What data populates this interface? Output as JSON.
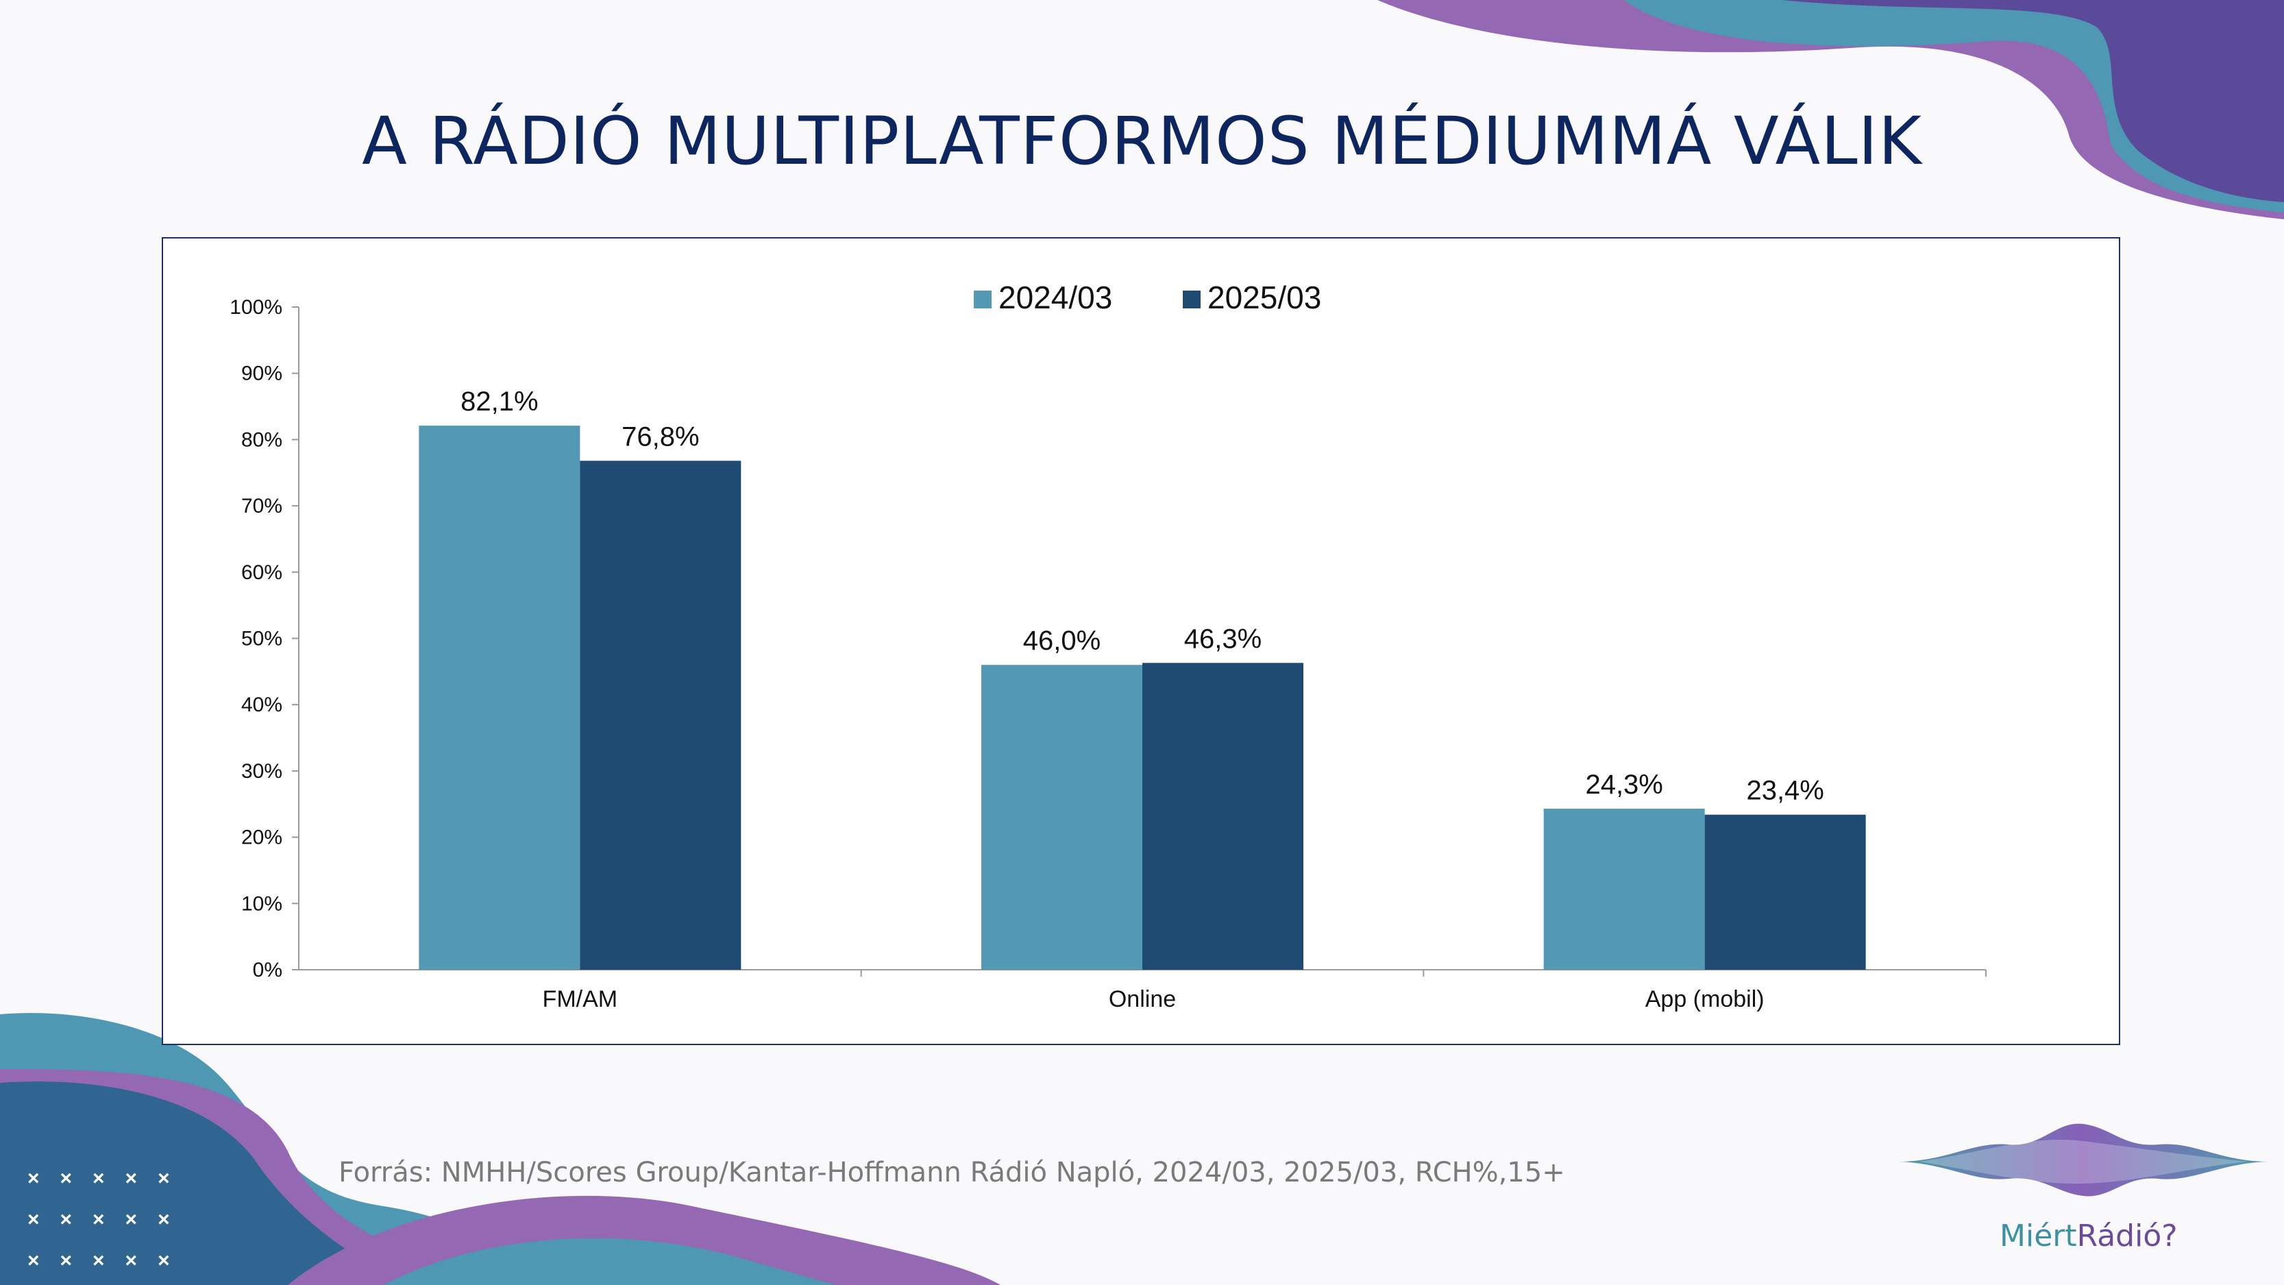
{
  "title": "A RÁDIÓ MULTIPLATFORMOS MÉDIUMMÁ VÁLIK",
  "source": "Forrás: NMHH/Scores Group/Kantar-Hoffmann Rádió Napló, 2024/03, 2025/03, RCH%,15+",
  "logo": {
    "part1": "Miért",
    "part2": "Rádió?"
  },
  "colors": {
    "series1": "#5399b4",
    "series2": "#1f4a72",
    "title": "#0d2660"
  },
  "chart_data": {
    "type": "bar",
    "categories": [
      "FM/AM",
      "Online",
      "App (mobil)"
    ],
    "series": [
      {
        "name": "2024/03",
        "values": [
          82.1,
          46.0,
          24.3
        ],
        "labels": [
          "82,1%",
          "46,0%",
          "24,3%"
        ]
      },
      {
        "name": "2025/03",
        "values": [
          76.8,
          46.3,
          23.4
        ],
        "labels": [
          "76,8%",
          "46,3%",
          "23,4%"
        ]
      }
    ],
    "ylim": [
      0,
      100
    ],
    "yticks": [
      "0%",
      "10%",
      "20%",
      "30%",
      "40%",
      "50%",
      "60%",
      "70%",
      "80%",
      "90%",
      "100%"
    ],
    "legend": "top-center",
    "grid": false
  }
}
